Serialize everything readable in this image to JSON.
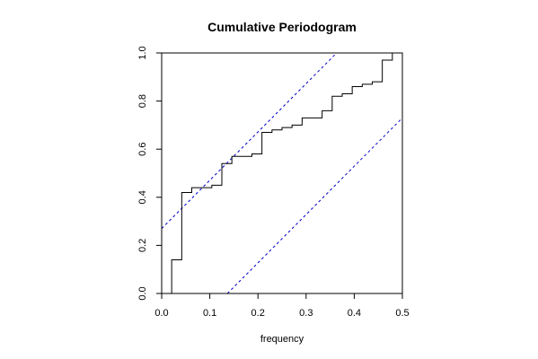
{
  "chart_data": {
    "type": "line",
    "title": "Cumulative Periodogram",
    "xlabel": "frequency",
    "ylabel": "",
    "xlim": [
      0,
      0.5
    ],
    "ylim": [
      0,
      1
    ],
    "x_ticks": [
      "0.0",
      "0.1",
      "0.2",
      "0.3",
      "0.4",
      "0.5"
    ],
    "y_ticks": [
      "0.0",
      "0.2",
      "0.4",
      "0.6",
      "0.8",
      "1.0"
    ],
    "grid": false,
    "series": [
      {
        "style": "step",
        "color": "#000000",
        "x": [
          0.0208,
          0.0417,
          0.0625,
          0.0833,
          0.1042,
          0.125,
          0.1458,
          0.1667,
          0.1875,
          0.2083,
          0.2292,
          0.25,
          0.2708,
          0.2917,
          0.3125,
          0.3333,
          0.3542,
          0.375,
          0.3958,
          0.4167,
          0.4375,
          0.4583,
          0.4792,
          0.5
        ],
        "y": [
          0.14,
          0.42,
          0.44,
          0.44,
          0.45,
          0.54,
          0.57,
          0.57,
          0.58,
          0.67,
          0.68,
          0.69,
          0.7,
          0.73,
          0.73,
          0.76,
          0.82,
          0.83,
          0.86,
          0.87,
          0.88,
          0.97,
          1.0,
          1.0
        ]
      }
    ],
    "bands": [
      {
        "style": "dashed",
        "color": "#0000cc",
        "x": [
          0.0,
          0.3635
        ],
        "y": [
          0.27,
          1.0
        ]
      },
      {
        "style": "dashed",
        "color": "#0000cc",
        "x": [
          0.1365,
          0.5
        ],
        "y": [
          0.0,
          0.73
        ]
      }
    ]
  }
}
